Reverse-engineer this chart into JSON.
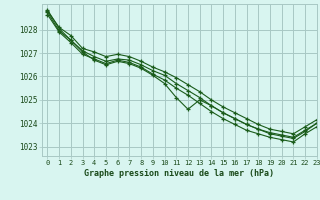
{
  "title": "Graphe pression niveau de la mer (hPa)",
  "background_color": "#d8f5f0",
  "grid_color": "#a8c8c4",
  "line_color": "#1a5c1a",
  "xlim": [
    -0.5,
    23
  ],
  "ylim": [
    1022.6,
    1029.1
  ],
  "yticks": [
    1023,
    1024,
    1025,
    1026,
    1027,
    1028
  ],
  "xticks": [
    0,
    1,
    2,
    3,
    4,
    5,
    6,
    7,
    8,
    9,
    10,
    11,
    12,
    13,
    14,
    15,
    16,
    17,
    18,
    19,
    20,
    21,
    22,
    23
  ],
  "series": [
    [
      1028.8,
      1028.1,
      1027.75,
      1027.2,
      1027.05,
      1026.85,
      1026.95,
      1026.85,
      1026.65,
      1026.4,
      1026.2,
      1025.95,
      1025.65,
      1025.35,
      1025.0,
      1024.7,
      1024.45,
      1024.2,
      1023.95,
      1023.75,
      1023.65,
      1023.55,
      1023.85,
      1024.15
    ],
    [
      1028.75,
      1027.95,
      1027.55,
      1027.1,
      1026.85,
      1026.65,
      1026.75,
      1026.7,
      1026.5,
      1026.25,
      1026.05,
      1025.7,
      1025.4,
      1025.1,
      1024.75,
      1024.45,
      1024.2,
      1023.95,
      1023.75,
      1023.6,
      1023.5,
      1023.4,
      1023.7,
      1024.0
    ],
    [
      1028.65,
      1027.9,
      1027.45,
      1026.95,
      1026.75,
      1026.55,
      1026.7,
      1026.6,
      1026.4,
      1026.1,
      1025.85,
      1025.5,
      1025.2,
      1024.85,
      1024.5,
      1024.2,
      1023.95,
      1023.7,
      1023.55,
      1023.4,
      1023.3,
      1023.2,
      1023.55,
      1023.85
    ],
    [
      1028.85,
      1028.05,
      1027.55,
      1027.05,
      1026.7,
      1026.5,
      1026.65,
      1026.55,
      1026.35,
      1026.05,
      1025.7,
      1025.1,
      1024.6,
      1025.0,
      1024.75,
      1024.45,
      1024.2,
      1023.95,
      1023.75,
      1023.55,
      1023.45,
      1023.35,
      1023.65,
      1024.0
    ]
  ]
}
